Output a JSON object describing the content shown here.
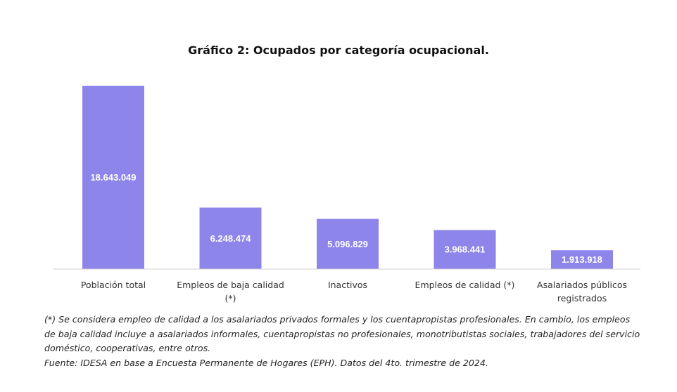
{
  "chart_data": {
    "type": "bar",
    "title": "Gráfico 2: Ocupados por categoría ocupacional.",
    "categories": [
      [
        "Población total"
      ],
      [
        "Empleos de baja calidad",
        "(*)"
      ],
      [
        "Inactivos"
      ],
      [
        "Empleos de calidad (*)"
      ],
      [
        "Asalariados públicos",
        "registrados"
      ]
    ],
    "values": [
      18643049,
      6248474,
      5096829,
      3968441,
      1913918
    ],
    "data_labels": [
      "18.643.049",
      "6.248.474",
      "5.096.829",
      "3.968.441",
      "1.913.918"
    ],
    "xlabel": "",
    "ylabel": "",
    "ylim": [
      0,
      18643049
    ],
    "grid": false,
    "legend": "none",
    "colors": {
      "bar": "#8d85ea",
      "label": "#ffffff",
      "axis": "#d0d0d0"
    }
  },
  "notes": {
    "footnote": "(*) Se considera empleo de calidad a los asalariados privados formales y los cuentapropistas profesionales. En cambio, los empleos de baja calidad incluye a asalariados informales, cuentapropistas no profesionales, monotributistas sociales, trabajadores del servicio doméstico, cooperativas, entre otros.",
    "source": "Fuente: IDESA en base a Encuesta Permanente de Hogares (EPH). Datos del 4to. trimestre de 2024."
  }
}
